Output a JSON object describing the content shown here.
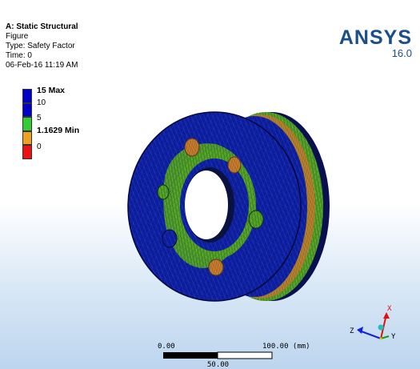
{
  "header": {
    "title": "A: Static Structural",
    "figure": "Figure",
    "type": "Type: Safety Factor",
    "time": "Time: 0",
    "date": "06-Feb-16 11:19 AM"
  },
  "brand": {
    "name": "ANSYS",
    "version": "16.0"
  },
  "legend": {
    "items": [
      {
        "label": "15 Max",
        "color": "#0000c8",
        "bold": true
      },
      {
        "label": "10",
        "color": "#0000c8",
        "bold": false
      },
      {
        "label": "5",
        "color": "#33cc33",
        "bold": false
      },
      {
        "label": "1.1629 Min",
        "color": "#f0a020",
        "bold": true
      },
      {
        "label": "0",
        "color": "#ee1111",
        "bold": false
      }
    ]
  },
  "scale": {
    "left": "0.00",
    "right": "100.00 (mm)",
    "mid": "50.00"
  },
  "triad": {
    "x": "X",
    "y": "Y",
    "z": "Z"
  },
  "colors": {
    "mesh_blue": "#0a1a8c",
    "mesh_green": "#3f8f1f",
    "mesh_orange": "#c87a2a",
    "brand": "#1a4f8a"
  }
}
